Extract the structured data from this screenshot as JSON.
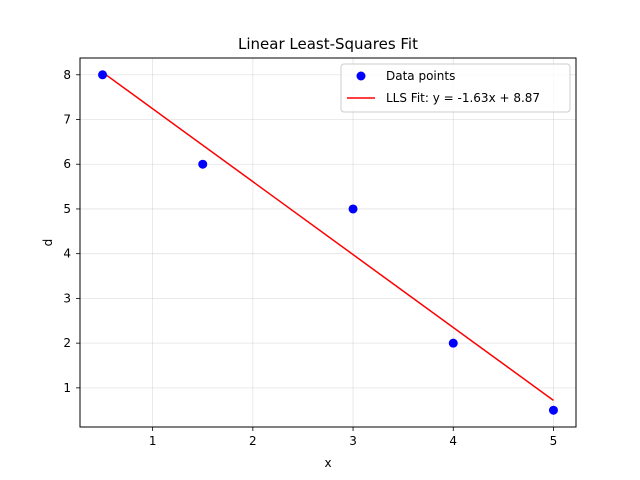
{
  "chart_data": {
    "type": "scatter",
    "title": "Linear Least-Squares Fit",
    "xlabel": "x",
    "ylabel": "d",
    "xlim": [
      0.275,
      5.225
    ],
    "ylim": [
      0.125,
      8.375
    ],
    "xticks": [
      1,
      2,
      3,
      4,
      5
    ],
    "yticks": [
      1,
      2,
      3,
      4,
      5,
      6,
      7,
      8
    ],
    "grid": true,
    "legend_position": "top-right",
    "series": [
      {
        "name": "Data points",
        "type": "scatter",
        "color": "#0000ff",
        "x": [
          0.5,
          1.5,
          3,
          4,
          5
        ],
        "y": [
          8,
          6,
          5,
          2,
          0.5
        ]
      },
      {
        "name": "LLS Fit: y = -1.63x + 8.87",
        "type": "line",
        "color": "#ff0000",
        "slope": -1.63,
        "intercept": 8.87,
        "x": [
          0.5,
          5
        ],
        "y": [
          8.055,
          0.72
        ]
      }
    ]
  }
}
